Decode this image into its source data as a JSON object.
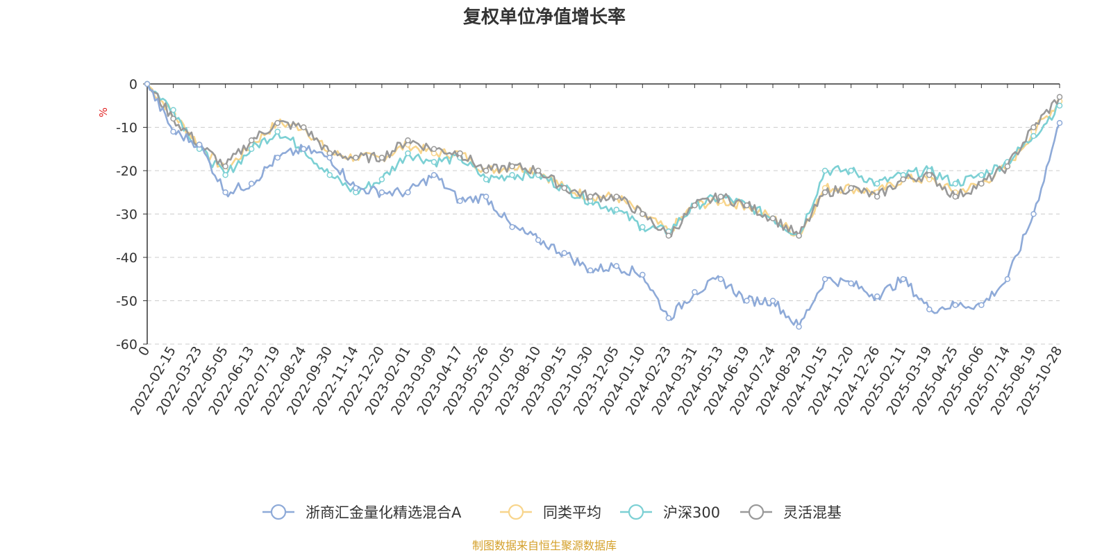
{
  "chart_data": {
    "type": "line",
    "title": "复权单位净值增长率",
    "ylabel": "%",
    "ylim": [
      -60,
      0
    ],
    "yticks": [
      0,
      -10,
      -20,
      -30,
      -40,
      -50,
      -60
    ],
    "grid": true,
    "legend_position": "bottom",
    "x_tick_labels": [
      "0",
      "2022-02-15",
      "2022-03-23",
      "2022-05-05",
      "2022-06-13",
      "2022-07-19",
      "2022-08-24",
      "2022-09-30",
      "2022-11-14",
      "2022-12-20",
      "2023-02-01",
      "2023-03-09",
      "2023-04-17",
      "2023-05-26",
      "2023-07-05",
      "2023-08-10",
      "2023-09-15",
      "2023-10-30",
      "2023-12-05",
      "2024-01-10",
      "2024-02-23",
      "2024-03-31",
      "2024-05-13",
      "2024-06-19",
      "2024-07-24",
      "2024-08-29",
      "2024-10-15",
      "2024-11-20",
      "2024-12-26",
      "2025-02-11",
      "2025-03-19",
      "2025-04-25",
      "2025-06-06",
      "2025-07-14",
      "2025-08-19",
      "2025-10-28"
    ],
    "series": [
      {
        "name": "浙商汇金量化精选混合A",
        "color": "#8eaad8",
        "values": [
          0,
          -11,
          -14,
          -25,
          -23,
          -17,
          -15,
          -17,
          -24,
          -25,
          -25,
          -21,
          -27,
          -26,
          -33,
          -36,
          -39,
          -43,
          -42,
          -44,
          -54,
          -48,
          -45,
          -50,
          -50,
          -56,
          -45,
          -46,
          -49,
          -45,
          -52,
          -51,
          -51,
          -45,
          -30,
          -9
        ]
      },
      {
        "name": "同类平均",
        "color": "#f8d58c",
        "values": [
          0,
          -7,
          -14,
          -20,
          -14,
          -9,
          -10,
          -16,
          -17,
          -17,
          -14,
          -16,
          -16,
          -20,
          -19,
          -20,
          -24,
          -26,
          -26,
          -30,
          -34,
          -28,
          -27,
          -28,
          -31,
          -35,
          -24,
          -24,
          -25,
          -22,
          -22,
          -25,
          -23,
          -19,
          -11,
          -4
        ]
      },
      {
        "name": "沪深300",
        "color": "#7cd0d4",
        "values": [
          0,
          -6,
          -15,
          -21,
          -15,
          -11,
          -15,
          -21,
          -25,
          -22,
          -16,
          -18,
          -17,
          -22,
          -21,
          -21,
          -24,
          -27,
          -29,
          -33,
          -34,
          -28,
          -26,
          -28,
          -31,
          -35,
          -20,
          -20,
          -23,
          -21,
          -20,
          -23,
          -21,
          -18,
          -12,
          -5
        ]
      },
      {
        "name": "灵活混基",
        "color": "#999999",
        "values": [
          0,
          -8,
          -14,
          -19,
          -13,
          -9,
          -10,
          -16,
          -17,
          -17,
          -13,
          -15,
          -16,
          -20,
          -19,
          -20,
          -24,
          -26,
          -26,
          -30,
          -35,
          -28,
          -26,
          -28,
          -31,
          -35,
          -25,
          -24,
          -26,
          -22,
          -21,
          -26,
          -23,
          -19,
          -10,
          -3
        ]
      }
    ]
  },
  "source_text": "制图数据来自恒生聚源数据库",
  "colors": {
    "source": "#d4a02a",
    "unit": "#e02020",
    "grid": "#cccccc"
  }
}
